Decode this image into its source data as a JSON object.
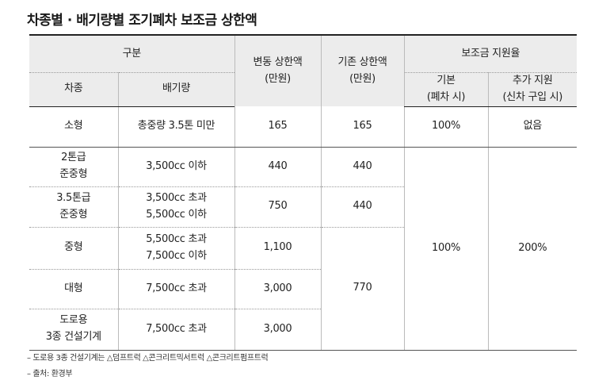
{
  "title": "차종별 · 배기량별 조기폐차 보조금 상한액",
  "header": {
    "group": "구분",
    "col_type": "차종",
    "col_displacement": "배기량",
    "changed_cap": [
      "변동 상한액",
      "(만원)"
    ],
    "existing_cap": [
      "기존 상한액",
      "(만원)"
    ],
    "subsidy_rate": "보조금 지원율",
    "basic": [
      "기본",
      "(폐차 시)"
    ],
    "additional": [
      "추가 지원",
      "(신차 구입 시)"
    ]
  },
  "rows": [
    {
      "type": [
        "소형"
      ],
      "displacement": [
        "총중량 3.5톤 미만"
      ],
      "changed": "165",
      "existing": "165",
      "basic": "100%",
      "additional": "없음"
    },
    {
      "type": [
        "2톤급",
        "준중형"
      ],
      "displacement": [
        "3,500cc 이하"
      ],
      "changed": "440",
      "existing": "440"
    },
    {
      "type": [
        "3.5톤급",
        "준중형"
      ],
      "displacement": [
        "3,500cc 초과",
        "5,500cc 이하"
      ],
      "changed": "750",
      "existing": "440"
    },
    {
      "type": [
        "중형"
      ],
      "displacement": [
        "5,500cc 초과",
        "7,500cc 이하"
      ],
      "changed": "1,100"
    },
    {
      "type": [
        "대형"
      ],
      "displacement": [
        "7,500cc 초과"
      ],
      "changed": "3,000"
    },
    {
      "type": [
        "도로용",
        "3종 건설기계"
      ],
      "displacement": [
        "7,500cc 초과"
      ],
      "changed": "3,000"
    }
  ],
  "merged": {
    "existing_large": "770",
    "basic_rate": "100%",
    "additional_rate": "200%"
  },
  "notes": [
    "– 도로용 3종 건설기계는 △덤프트럭 △콘크리트믹서트럭 △콘크리트펌프트럭",
    "– 출처: 환경부"
  ]
}
